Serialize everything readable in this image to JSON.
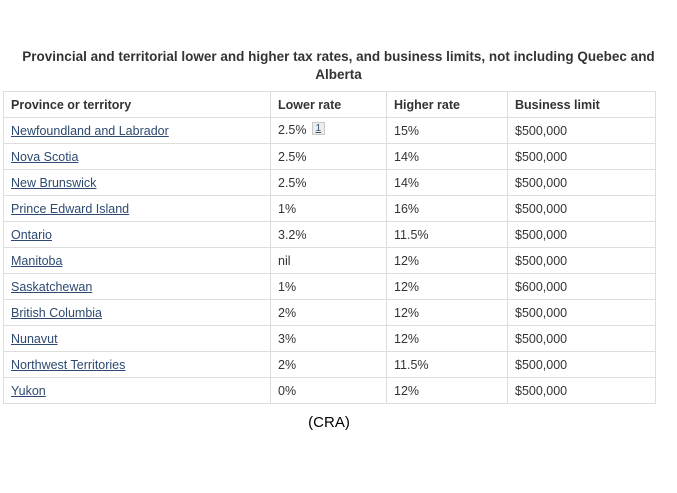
{
  "page": {
    "title": "Provincial and territorial lower and higher tax rates, and business limits, not including Quebec and Alberta",
    "caption": "(CRA)"
  },
  "colors": {
    "link": "#2e4a70",
    "table_border": "#dddddd",
    "footnote_bg": "#ededee",
    "text": "#333333"
  },
  "table": {
    "columns": [
      "Province or territory",
      "Lower rate",
      "Higher rate",
      "Business limit"
    ],
    "rows": [
      {
        "province": "Newfoundland and Labrador",
        "lower": "2.5%",
        "footnote": "1",
        "higher": "15%",
        "limit": "$500,000"
      },
      {
        "province": "Nova Scotia",
        "lower": "2.5%",
        "footnote": "",
        "higher": "14%",
        "limit": "$500,000"
      },
      {
        "province": "New Brunswick",
        "lower": "2.5%",
        "footnote": "",
        "higher": "14%",
        "limit": "$500,000"
      },
      {
        "province": "Prince Edward Island",
        "lower": "1%",
        "footnote": "",
        "higher": "16%",
        "limit": "$500,000"
      },
      {
        "province": "Ontario",
        "lower": "3.2%",
        "footnote": "",
        "higher": "11.5%",
        "limit": "$500,000"
      },
      {
        "province": "Manitoba",
        "lower": "nil",
        "footnote": "",
        "higher": "12%",
        "limit": "$500,000"
      },
      {
        "province": "Saskatchewan",
        "lower": "1%",
        "footnote": "",
        "higher": "12%",
        "limit": "$600,000"
      },
      {
        "province": "British Columbia",
        "lower": "2%",
        "footnote": "",
        "higher": "12%",
        "limit": "$500,000"
      },
      {
        "province": "Nunavut",
        "lower": "3%",
        "footnote": "",
        "higher": "12%",
        "limit": "$500,000"
      },
      {
        "province": "Northwest Territories",
        "lower": "2%",
        "footnote": "",
        "higher": "11.5%",
        "limit": "$500,000"
      },
      {
        "province": "Yukon",
        "lower": "0%",
        "footnote": "",
        "higher": "12%",
        "limit": "$500,000"
      }
    ]
  }
}
